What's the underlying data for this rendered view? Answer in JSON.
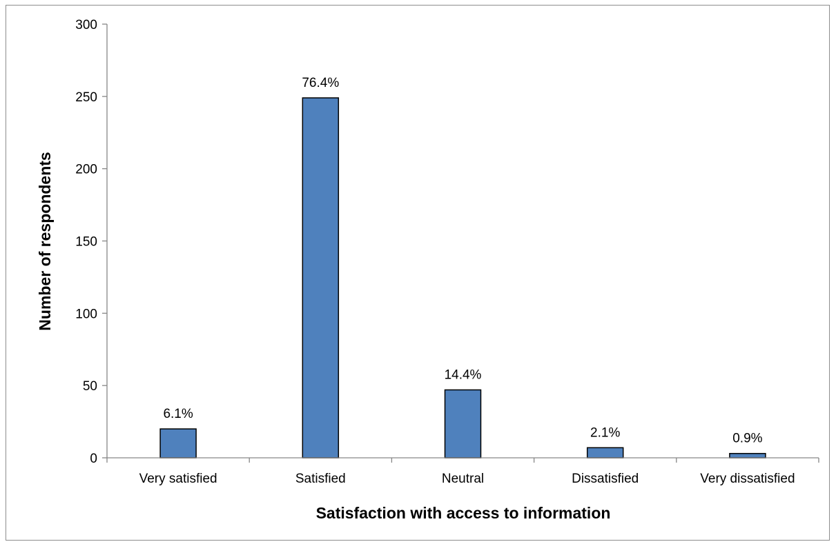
{
  "chart_data": {
    "type": "bar",
    "title": "",
    "xlabel": "Satisfaction with access to information",
    "ylabel": "Number of respondents",
    "categories": [
      "Very satisfied",
      "Satisfied",
      "Neutral",
      "Dissatisfied",
      "Very dissatisfied"
    ],
    "values": [
      20,
      249,
      47,
      7,
      3
    ],
    "data_labels": [
      "6.1%",
      "76.4%",
      "14.4%",
      "2.1%",
      "0.9%"
    ],
    "ylim": [
      0,
      300
    ],
    "yticks": [
      0,
      50,
      100,
      150,
      200,
      250,
      300
    ],
    "grid": false,
    "legend": "none",
    "colors": {
      "bar_fill": "#4f81bd",
      "bar_stroke": "#000000",
      "axis": "#868686"
    }
  }
}
